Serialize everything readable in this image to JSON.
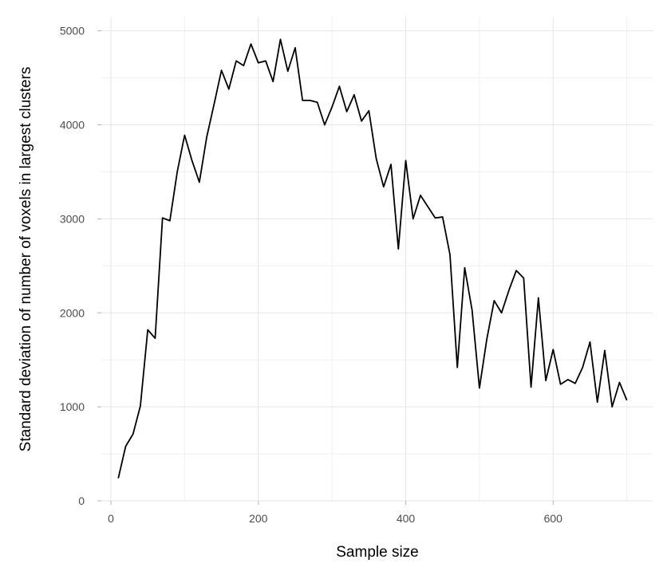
{
  "chart_data": {
    "type": "line",
    "xlabel": "Sample size",
    "ylabel": "Standard deviation of number of voxels in largest clusters",
    "xlim": [
      -13,
      735
    ],
    "ylim": [
      0,
      5150
    ],
    "x_ticks": [
      0,
      200,
      400,
      600
    ],
    "x_tick_labels": [
      "0",
      "200",
      "400",
      "600"
    ],
    "y_ticks": [
      0,
      1000,
      2000,
      3000,
      4000,
      5000
    ],
    "y_tick_labels": [
      "0",
      "1000",
      "2000",
      "3000",
      "4000",
      "5000"
    ],
    "grid": true,
    "line_color": "#000000",
    "series": [
      {
        "x": [
          10,
          20,
          30,
          40,
          50,
          60,
          70,
          80,
          90,
          100,
          110,
          120,
          130,
          140,
          150,
          160,
          170,
          180,
          190,
          200,
          210,
          220,
          230,
          240,
          250,
          260,
          270,
          280,
          290,
          300,
          310,
          320,
          330,
          340,
          350,
          360,
          370,
          380,
          390,
          400,
          410,
          420,
          430,
          440,
          450,
          460,
          470,
          480,
          490,
          500,
          510,
          520,
          530,
          540,
          550,
          560,
          570,
          580,
          590,
          600,
          610,
          620,
          630,
          640,
          650,
          660,
          670,
          680,
          690,
          700
        ],
        "values": [
          240,
          580,
          710,
          1010,
          1820,
          1730,
          3010,
          2980,
          3500,
          3890,
          3620,
          3390,
          3870,
          4220,
          4580,
          4380,
          4680,
          4630,
          4860,
          4660,
          4680,
          4460,
          4910,
          4570,
          4820,
          4260,
          4260,
          4240,
          4000,
          4190,
          4410,
          4140,
          4320,
          4040,
          4150,
          3640,
          3340,
          3580,
          2680,
          3620,
          3000,
          3250,
          3130,
          3010,
          3020,
          2620,
          1420,
          2480,
          2030,
          1200,
          1720,
          2130,
          2000,
          2240,
          2450,
          2370,
          1210,
          2160,
          1280,
          1610,
          1240,
          1290,
          1250,
          1420,
          1690,
          1050,
          1600,
          1000,
          1260,
          1070
        ]
      }
    ]
  }
}
